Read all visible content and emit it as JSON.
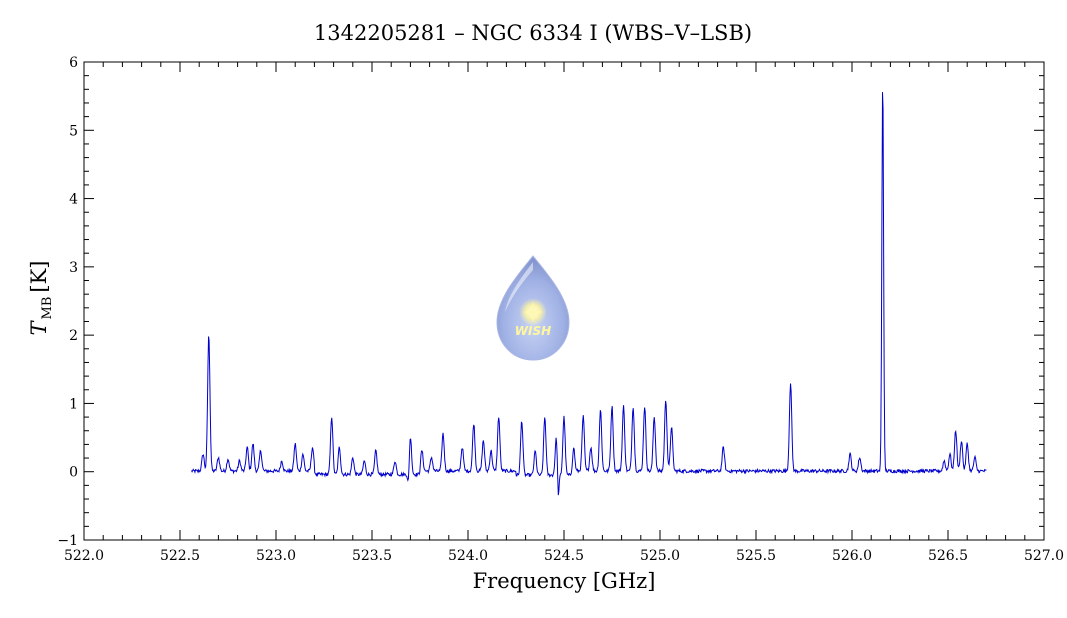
{
  "chart_data": {
    "type": "line",
    "title": "1342205281 – NGC 6334 I (WBS–V–LSB)",
    "xlabel": "Frequency [GHz]",
    "ylabel_main": "T",
    "ylabel_sub": "MB",
    "ylabel_unit": "[K]",
    "xlim": [
      522.0,
      527.0
    ],
    "ylim": [
      -1,
      6
    ],
    "xticks": [
      "522.0",
      "522.5",
      "523.0",
      "523.5",
      "524.0",
      "524.5",
      "525.0",
      "525.5",
      "526.0",
      "526.5",
      "527.0"
    ],
    "yticks": [
      "−1",
      "0",
      "1",
      "2",
      "3",
      "4",
      "5",
      "6"
    ],
    "x_start": 522.56,
    "x_end": 526.7,
    "series_color": "#0000cc",
    "peaks": [
      {
        "x": 522.62,
        "y": 0.25
      },
      {
        "x": 522.65,
        "y": 2.0
      },
      {
        "x": 522.7,
        "y": 0.2
      },
      {
        "x": 522.75,
        "y": 0.18
      },
      {
        "x": 522.81,
        "y": 0.15
      },
      {
        "x": 522.85,
        "y": 0.35
      },
      {
        "x": 522.88,
        "y": 0.4
      },
      {
        "x": 522.92,
        "y": 0.3
      },
      {
        "x": 523.03,
        "y": 0.15
      },
      {
        "x": 523.1,
        "y": 0.4
      },
      {
        "x": 523.14,
        "y": 0.25
      },
      {
        "x": 523.19,
        "y": 0.35
      },
      {
        "x": 523.29,
        "y": 0.85
      },
      {
        "x": 523.33,
        "y": 0.4
      },
      {
        "x": 523.4,
        "y": 0.25
      },
      {
        "x": 523.46,
        "y": 0.2
      },
      {
        "x": 523.52,
        "y": 0.35
      },
      {
        "x": 523.62,
        "y": 0.2
      },
      {
        "x": 523.7,
        "y": 0.55
      },
      {
        "x": 523.76,
        "y": 0.3
      },
      {
        "x": 523.81,
        "y": 0.2
      },
      {
        "x": 523.87,
        "y": 0.55
      },
      {
        "x": 523.97,
        "y": 0.35
      },
      {
        "x": 524.03,
        "y": 0.7
      },
      {
        "x": 524.08,
        "y": 0.45
      },
      {
        "x": 524.12,
        "y": 0.3
      },
      {
        "x": 524.16,
        "y": 0.8
      },
      {
        "x": 524.28,
        "y": 0.8
      },
      {
        "x": 524.35,
        "y": 0.35
      },
      {
        "x": 524.4,
        "y": 0.85
      },
      {
        "x": 524.46,
        "y": 0.55
      },
      {
        "x": 524.5,
        "y": 0.85
      },
      {
        "x": 524.55,
        "y": 0.35
      },
      {
        "x": 524.6,
        "y": 0.8
      },
      {
        "x": 524.64,
        "y": 0.35
      },
      {
        "x": 524.69,
        "y": 0.9
      },
      {
        "x": 524.75,
        "y": 0.95
      },
      {
        "x": 524.81,
        "y": 0.95
      },
      {
        "x": 524.86,
        "y": 0.95
      },
      {
        "x": 524.92,
        "y": 0.95
      },
      {
        "x": 524.97,
        "y": 0.8
      },
      {
        "x": 525.03,
        "y": 1.05
      },
      {
        "x": 525.06,
        "y": 0.65
      },
      {
        "x": 525.33,
        "y": 0.35
      },
      {
        "x": 525.68,
        "y": 1.3
      },
      {
        "x": 525.99,
        "y": 0.25
      },
      {
        "x": 526.04,
        "y": 0.2
      },
      {
        "x": 526.16,
        "y": 5.75
      },
      {
        "x": 526.48,
        "y": 0.15
      },
      {
        "x": 526.51,
        "y": 0.25
      },
      {
        "x": 526.54,
        "y": 0.6
      },
      {
        "x": 526.57,
        "y": 0.45
      },
      {
        "x": 526.6,
        "y": 0.4
      },
      {
        "x": 526.64,
        "y": 0.2
      }
    ],
    "dips": [
      {
        "x": 524.47,
        "y": -0.4
      },
      {
        "x": 523.69,
        "y": -0.2
      }
    ]
  },
  "logo": {
    "text": "WISH"
  }
}
